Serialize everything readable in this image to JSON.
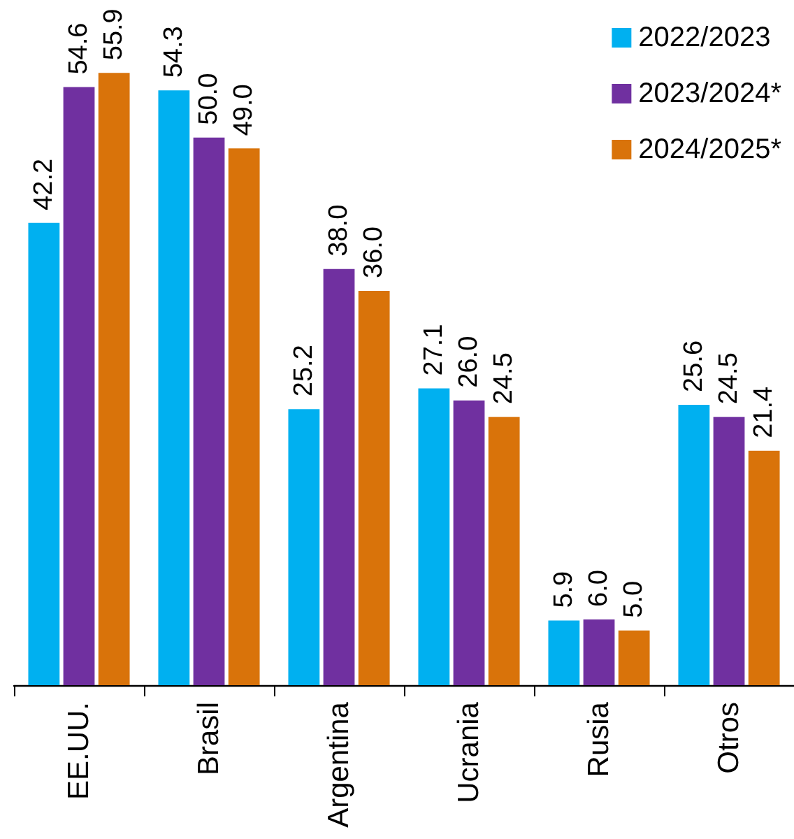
{
  "chart_data": {
    "type": "bar",
    "categories": [
      "EE.UU.",
      "Brasil",
      "Argentina",
      "Ucrania",
      "Rusia",
      "Otros"
    ],
    "series": [
      {
        "name": "2022/2023",
        "color": "#00b0f0",
        "values": [
          42.2,
          54.3,
          25.2,
          27.1,
          5.9,
          25.6
        ],
        "value_labels": [
          "42.2",
          "54.3",
          "25.2",
          "27.1",
          "5.9",
          "25.6"
        ]
      },
      {
        "name": "2023/2024*",
        "color": "#7030a0",
        "values": [
          54.6,
          50.0,
          38.0,
          26.0,
          6.0,
          24.5
        ],
        "value_labels": [
          "54.6",
          "50.0",
          "38.0",
          "26.0",
          "6.0",
          "24.5"
        ]
      },
      {
        "name": "2024/2025*",
        "color": "#d9730a",
        "values": [
          55.9,
          49.0,
          36.0,
          24.5,
          5.0,
          21.4
        ],
        "value_labels": [
          "55.9",
          "49.0",
          "36.0",
          "24.5",
          "5.0",
          "21.4"
        ]
      }
    ],
    "legend": "top right"
  }
}
